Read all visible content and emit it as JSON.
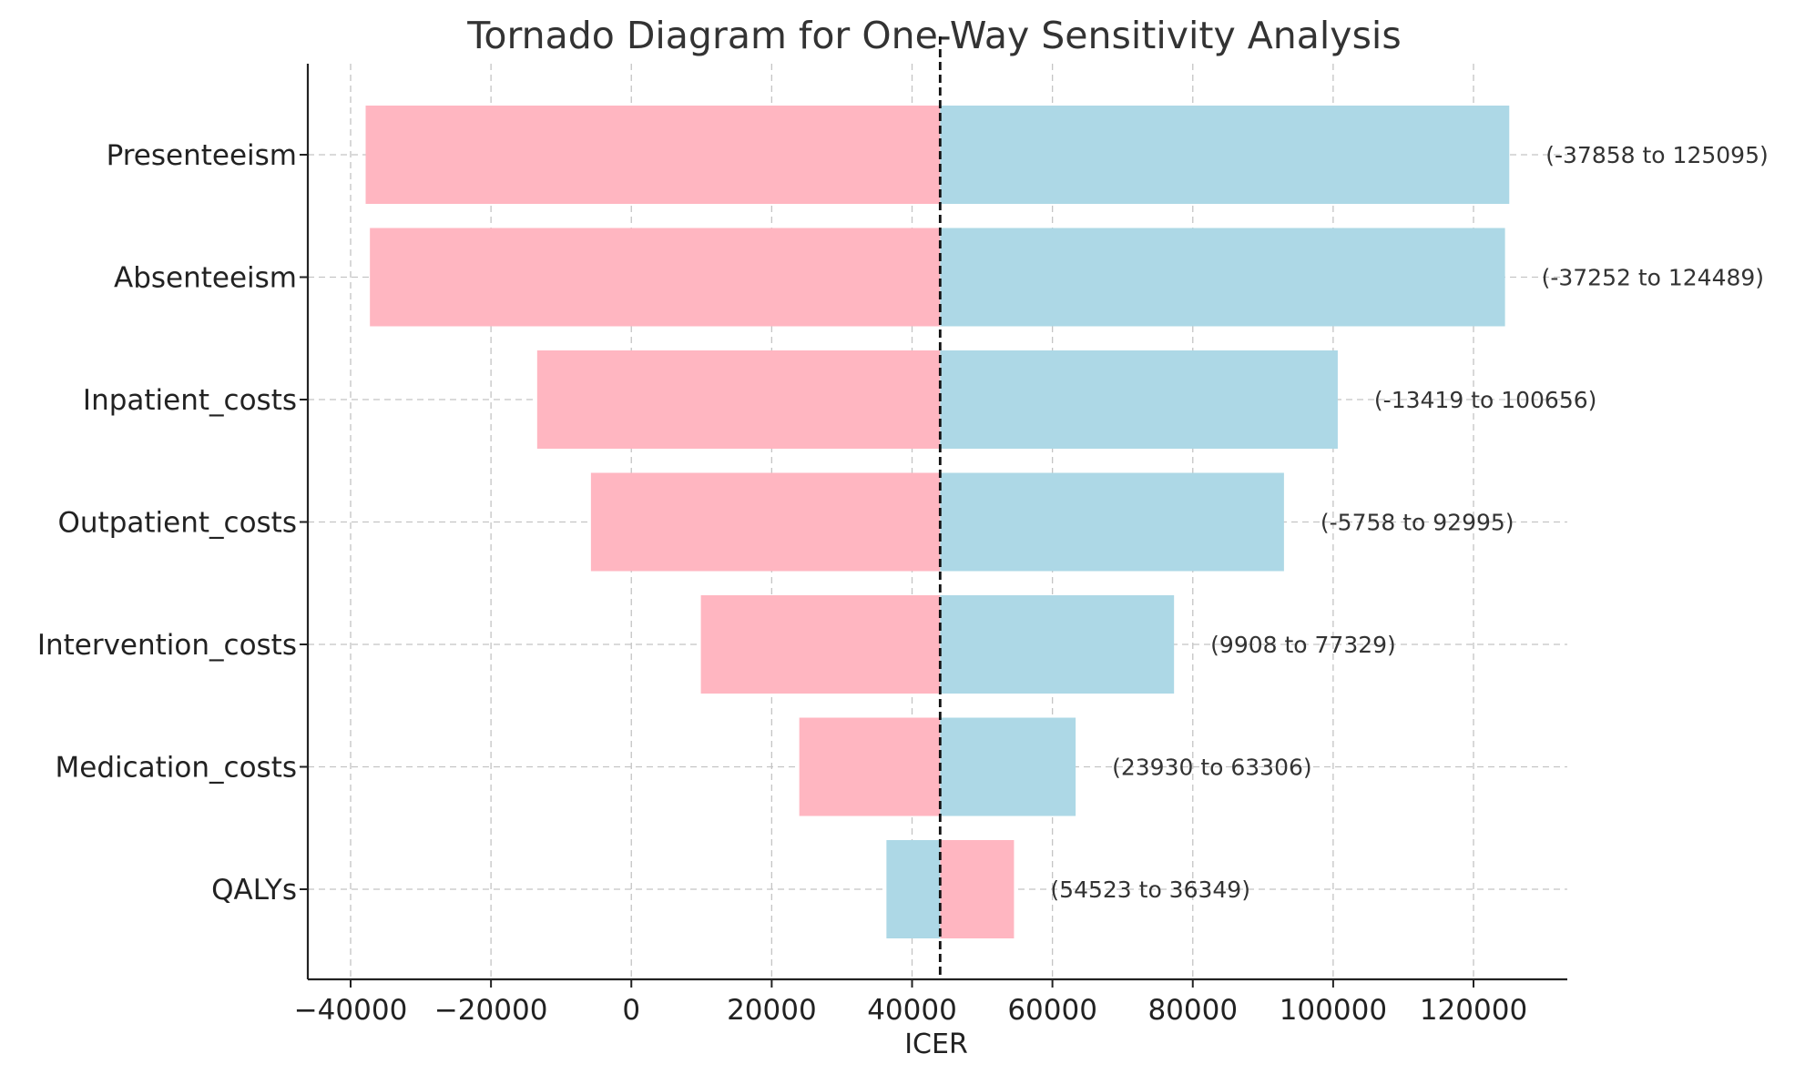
{
  "chart_data": {
    "type": "bar",
    "orientation": "horizontal",
    "title": "Tornado Diagram for One-Way Sensitivity Analysis",
    "xlabel": "ICER",
    "ylabel": "",
    "base_value": 44000,
    "xlim": [
      -46000,
      133000
    ],
    "xticks": [
      -40000,
      -20000,
      0,
      20000,
      40000,
      60000,
      80000,
      100000,
      120000
    ],
    "xtick_labels": [
      "−40000",
      "−20000",
      "0",
      "20000",
      "40000",
      "60000",
      "80000",
      "100000",
      "120000"
    ],
    "grid": true,
    "categories": [
      "Presenteeism",
      "Absenteeism",
      "Inpatient_costs",
      "Outpatient_costs",
      "Intervention_costs",
      "Medication_costs",
      "QALYs"
    ],
    "low_values": [
      -37858,
      -37252,
      -13419,
      -5758,
      9908,
      23930,
      54523
    ],
    "high_values": [
      125095,
      124489,
      100656,
      92995,
      77329,
      63306,
      36349
    ],
    "range_labels": [
      "(-37858 to 125095)",
      "(-37252 to 124489)",
      "(-13419 to 100656)",
      "(-5758 to 92995)",
      "(9908 to 77329)",
      "(23930 to 63306)",
      "(54523 to 36349)"
    ],
    "colors": {
      "low": "#ffb6c1",
      "high": "#add8e6",
      "baseline": "#111111"
    }
  }
}
